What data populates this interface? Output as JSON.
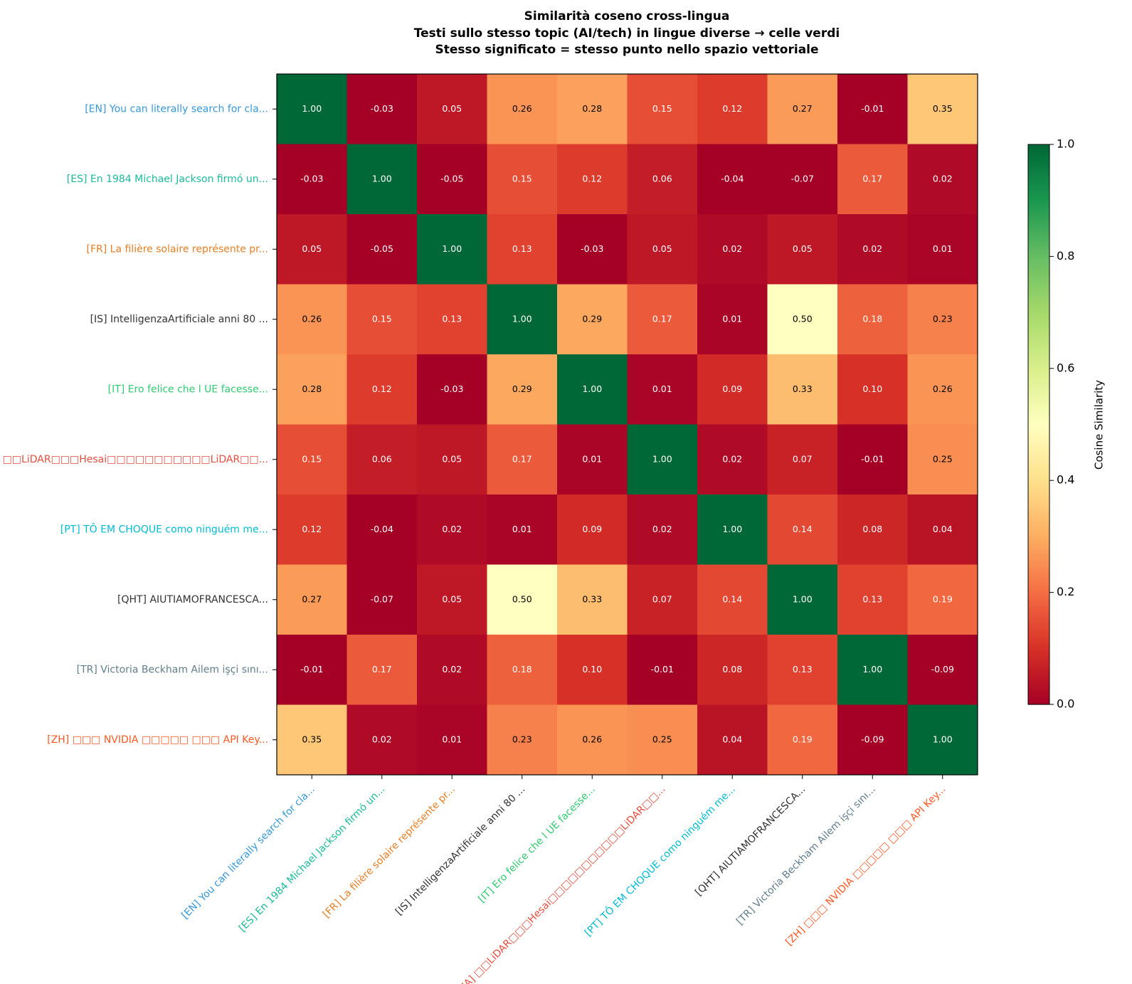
{
  "chart_data": {
    "type": "heatmap",
    "title": "Similarità coseno cross-lingua",
    "subtitle": [
      "Testi sullo stesso topic (AI/tech) in lingue diverse → celle verdi",
      "Stesso significato = stesso punto nello spazio vettoriale"
    ],
    "categories": [
      "[EN]  You can literally search for cla...",
      "[ES]  En 1984 Michael Jackson firmó un...",
      "[FR]  La filière solaire représente pr...",
      "[IS]  IntelligenzaArtificiale anni 80 ...",
      "[IT]  Ero felice che l UE facesse...",
      "[JA]  □□LiDAR□□□Hesai□□□□□□□□□□□LiDAR□□...",
      "[PT]  TÔ EM CHOQUE como ninguém me...",
      "[QHT]  AIUTIAMOFRANCESCA...",
      "[TR]  Victoria Beckham Ailem işçi sını...",
      "[ZH]  □□□ NVIDIA □□□□□ □□□ API Key..."
    ],
    "label_colors": [
      "#3498db",
      "#1abc9c",
      "#e67e22",
      "#333333",
      "#2ecc71",
      "#e74c3c",
      "#00bcd4",
      "#333333",
      "#607d8b",
      "#ff5722"
    ],
    "values": [
      [
        1,
        -0.03,
        0.05,
        0.26,
        0.28,
        0.15,
        0.12,
        0.27,
        -0.01,
        0.35
      ],
      [
        -0.03,
        1,
        -0.05,
        0.15,
        0.12,
        0.06,
        -0.04,
        -0.07,
        0.17,
        0.02
      ],
      [
        0.05,
        -0.05,
        1,
        0.13,
        -0.03,
        0.05,
        0.02,
        0.05,
        0.02,
        0.01
      ],
      [
        0.26,
        0.15,
        0.13,
        1,
        0.29,
        0.17,
        0.01,
        0.5,
        0.18,
        0.23
      ],
      [
        0.28,
        0.12,
        -0.03,
        0.29,
        1,
        0.01,
        0.09,
        0.33,
        0.1,
        0.26
      ],
      [
        0.15,
        0.06,
        0.05,
        0.17,
        0.01,
        1,
        0.02,
        0.07,
        -0.01,
        0.25
      ],
      [
        0.12,
        -0.04,
        0.02,
        0.01,
        0.09,
        0.02,
        1,
        0.14,
        0.08,
        0.04
      ],
      [
        0.27,
        -0.07,
        0.05,
        0.5,
        0.33,
        0.07,
        0.14,
        1,
        0.13,
        0.19
      ],
      [
        -0.01,
        0.17,
        0.02,
        0.18,
        0.1,
        -0.01,
        0.08,
        0.13,
        1,
        -0.09
      ],
      [
        0.35,
        0.02,
        0.01,
        0.23,
        0.26,
        0.25,
        0.04,
        0.19,
        -0.09,
        1
      ]
    ],
    "value_labels": [
      [
        "1.00",
        "-0.03",
        "0.05",
        "0.26",
        "0.28",
        "0.15",
        "0.12",
        "0.27",
        "-0.01",
        "0.35"
      ],
      [
        "-0.03",
        "1.00",
        "-0.05",
        "0.15",
        "0.12",
        "0.06",
        "-0.04",
        "-0.07",
        "0.17",
        "0.02"
      ],
      [
        "0.05",
        "-0.05",
        "1.00",
        "0.13",
        "-0.03",
        "0.05",
        "0.02",
        "0.05",
        "0.02",
        "0.01"
      ],
      [
        "0.26",
        "0.15",
        "0.13",
        "1.00",
        "0.29",
        "0.17",
        "0.01",
        "0.50",
        "0.18",
        "0.23"
      ],
      [
        "0.28",
        "0.12",
        "-0.03",
        "0.29",
        "1.00",
        "0.01",
        "0.09",
        "0.33",
        "0.10",
        "0.26"
      ],
      [
        "0.15",
        "0.06",
        "0.05",
        "0.17",
        "0.01",
        "1.00",
        "0.02",
        "0.07",
        "-0.01",
        "0.25"
      ],
      [
        "0.12",
        "-0.04",
        "0.02",
        "0.01",
        "0.09",
        "0.02",
        "1.00",
        "0.14",
        "0.08",
        "0.04"
      ],
      [
        "0.27",
        "-0.07",
        "0.05",
        "0.50",
        "0.33",
        "0.07",
        "0.14",
        "1.00",
        "0.13",
        "0.19"
      ],
      [
        "-0.01",
        "0.17",
        "0.02",
        "0.18",
        "0.10",
        "-0.01",
        "0.08",
        "0.13",
        "1.00",
        "-0.09"
      ],
      [
        "0.35",
        "0.02",
        "0.01",
        "0.23",
        "0.26",
        "0.25",
        "0.04",
        "0.19",
        "-0.09",
        "1.00"
      ]
    ],
    "colormap": "RdYlGn",
    "clim": [
      0,
      1
    ],
    "colorbar_label": "Cosine Similarity",
    "cticks": [
      {
        "value": 0,
        "label": "0.0"
      },
      {
        "value": 0.2,
        "label": "0.2"
      },
      {
        "value": 0.4,
        "label": "0.4"
      },
      {
        "value": 0.6,
        "label": "0.6"
      },
      {
        "value": 0.8,
        "label": "0.8"
      },
      {
        "value": 1,
        "label": "1.0"
      }
    ]
  }
}
